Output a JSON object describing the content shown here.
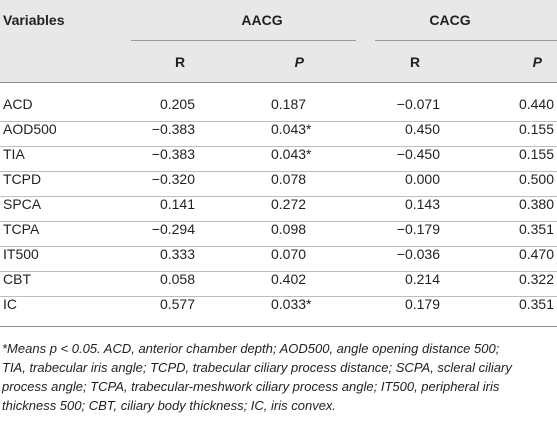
{
  "table": {
    "header": {
      "variables": "Variables",
      "group1": "AACG",
      "group2": "CACG",
      "r1": "R",
      "p1": "P",
      "r2": "R",
      "p2": "P"
    },
    "rows": [
      {
        "variable": "ACD",
        "aacg_r": "0.205",
        "aacg_p": "0.187",
        "cacg_r": "−0.071",
        "cacg_p": "0.440"
      },
      {
        "variable": "AOD500",
        "aacg_r": "−0.383",
        "aacg_p": "0.043*",
        "cacg_r": "0.450",
        "cacg_p": "0.155"
      },
      {
        "variable": "TIA",
        "aacg_r": "−0.383",
        "aacg_p": "0.043*",
        "cacg_r": "−0.450",
        "cacg_p": "0.155"
      },
      {
        "variable": "TCPD",
        "aacg_r": "−0.320",
        "aacg_p": "0.078",
        "cacg_r": "0.000",
        "cacg_p": "0.500"
      },
      {
        "variable": "SPCA",
        "aacg_r": "0.141",
        "aacg_p": "0.272",
        "cacg_r": "0.143",
        "cacg_p": "0.380"
      },
      {
        "variable": "TCPA",
        "aacg_r": "−0.294",
        "aacg_p": "0.098",
        "cacg_r": "−0.179",
        "cacg_p": "0.351"
      },
      {
        "variable": "IT500",
        "aacg_r": "0.333",
        "aacg_p": "0.070",
        "cacg_r": "−0.036",
        "cacg_p": "0.470"
      },
      {
        "variable": "CBT",
        "aacg_r": "0.058",
        "aacg_p": "0.402",
        "cacg_r": "0.214",
        "cacg_p": "0.322"
      },
      {
        "variable": "IC",
        "aacg_r": "0.577",
        "aacg_p": "0.033*",
        "cacg_r": "0.179",
        "cacg_p": "0.351"
      }
    ]
  },
  "footnote": {
    "line1": "*Means p < 0.05. ACD, anterior chamber depth; AOD500, angle opening distance 500;",
    "line2": "TIA, trabecular iris angle; TCPD, trabecular ciliary process distance; SCPA, scleral ciliary",
    "line3": "process angle; TCPA, trabecular-meshwork ciliary process angle; IT500, peripheral iris",
    "line4": "thickness 500; CBT, ciliary body thickness; IC, iris convex."
  }
}
